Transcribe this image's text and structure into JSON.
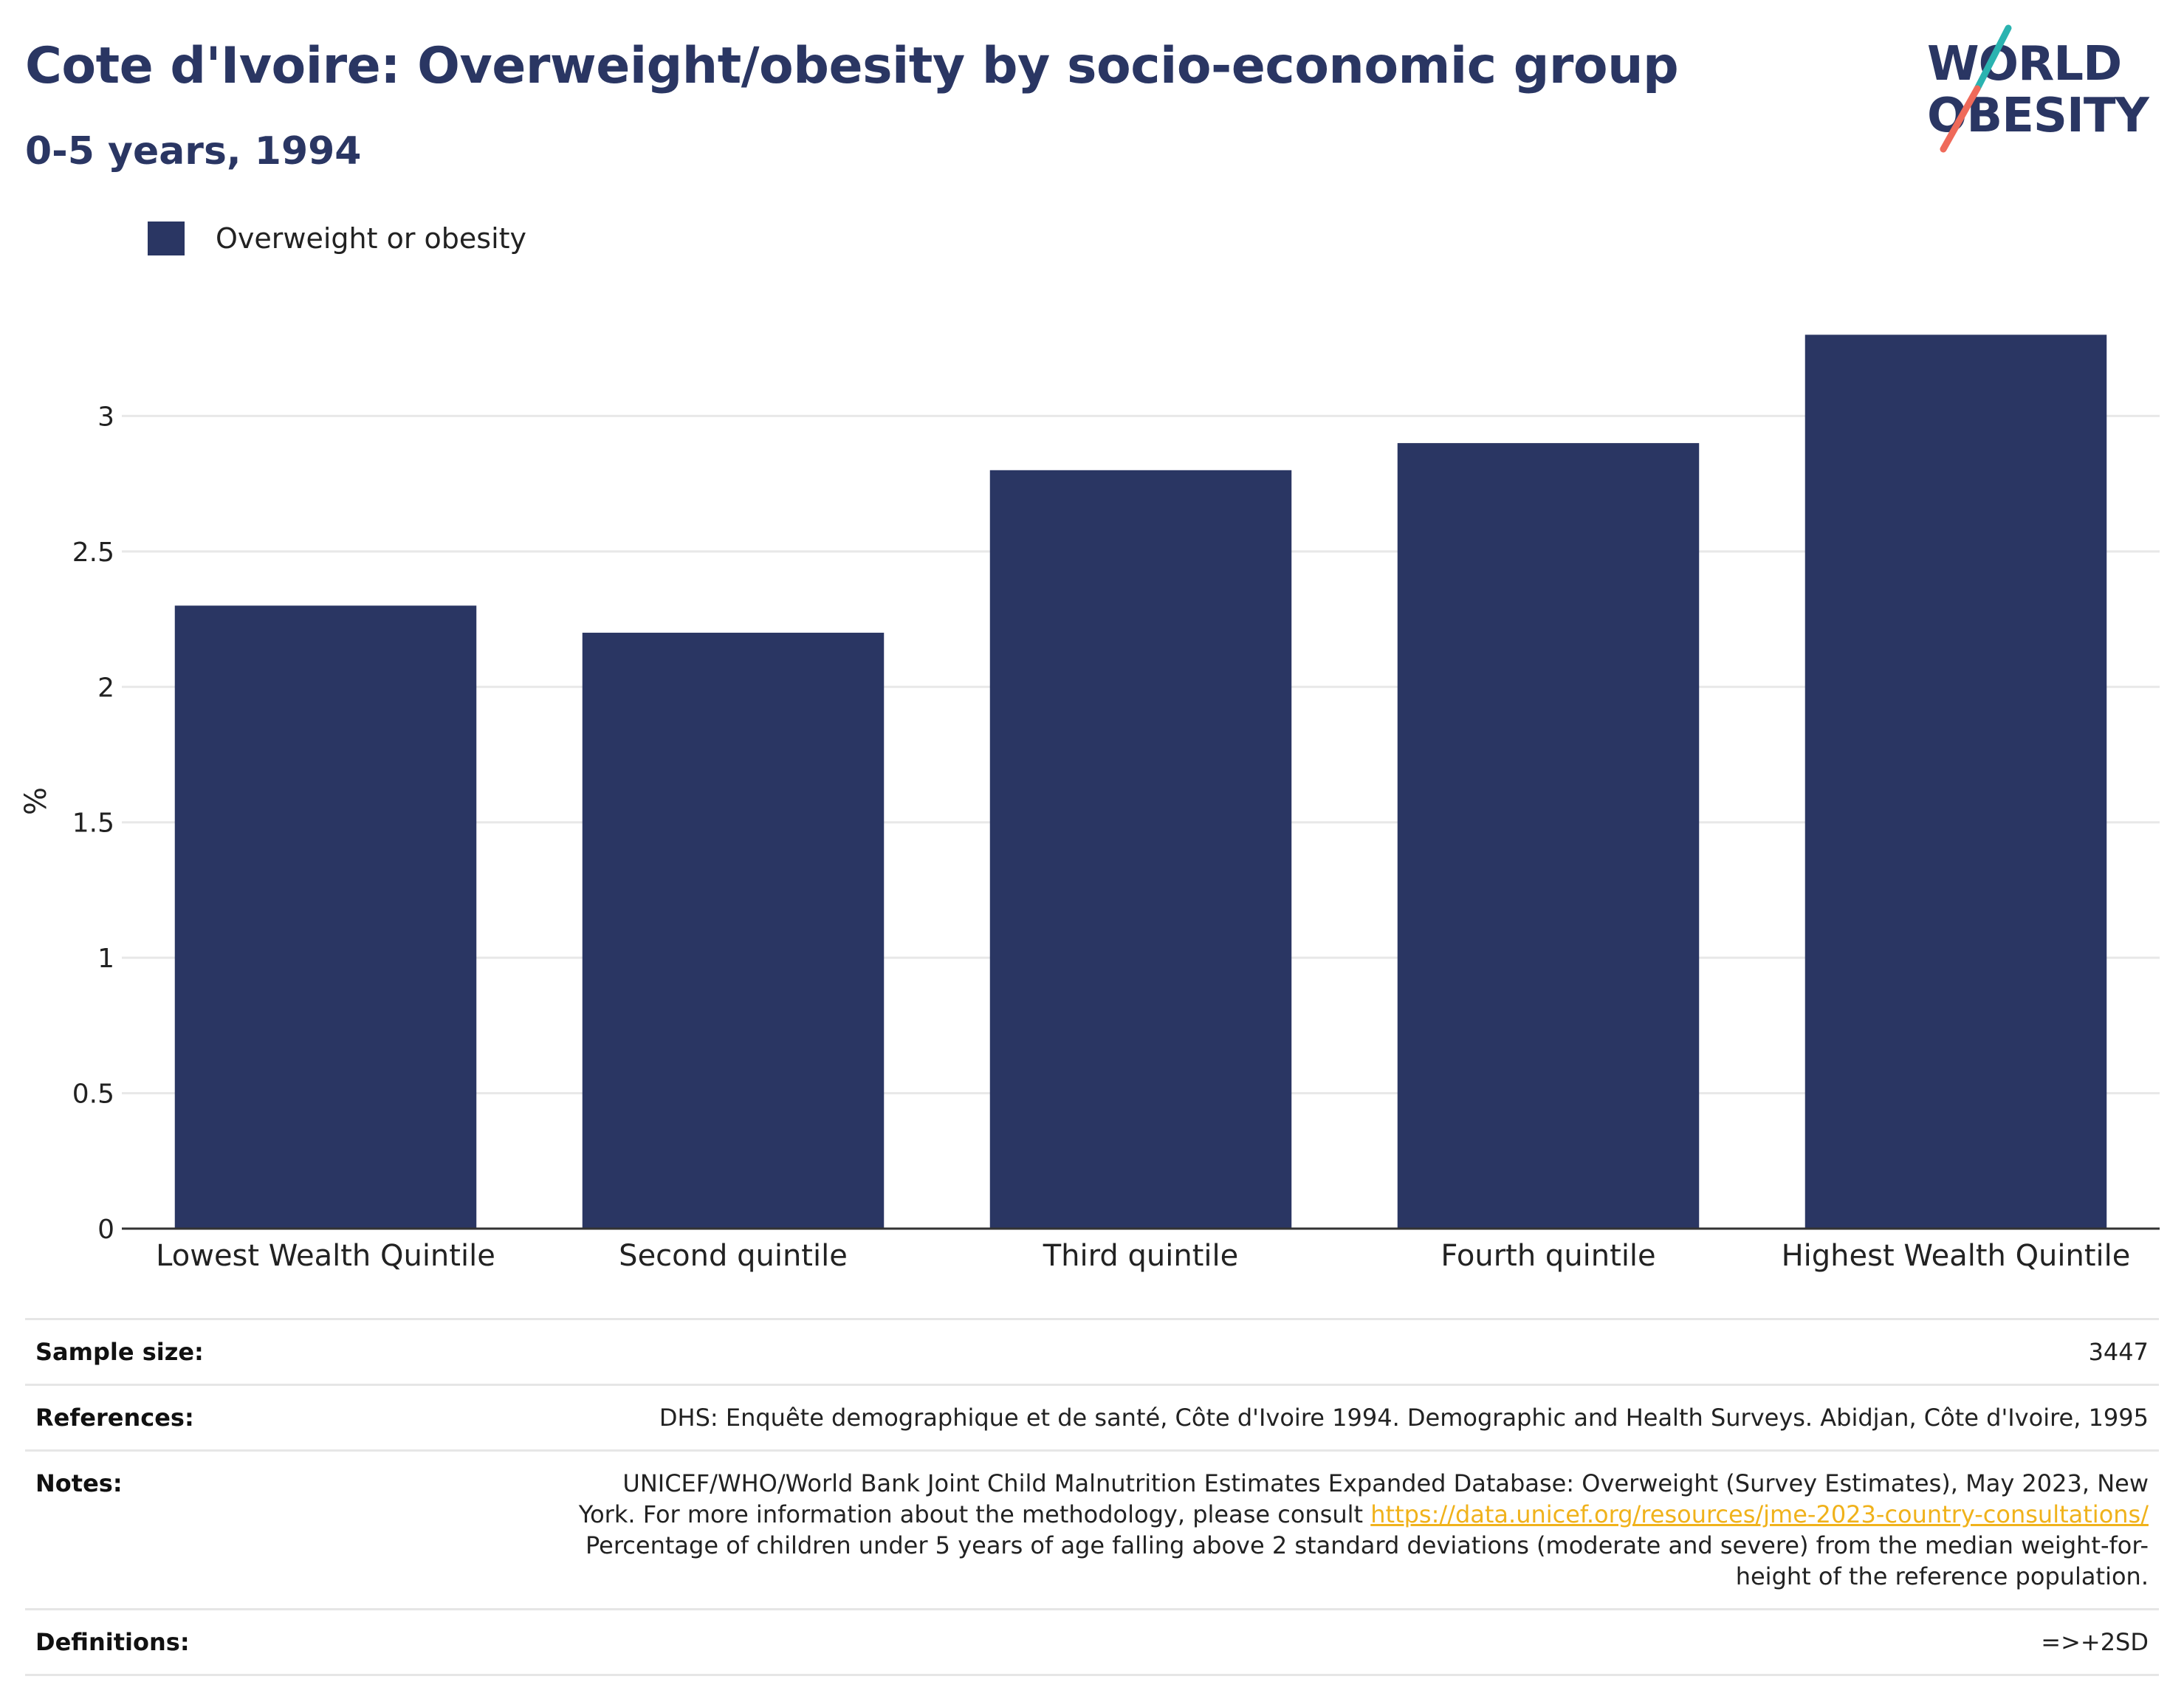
{
  "header": {
    "title": "Cote d'Ivoire: Overweight/obesity by socio-economic group",
    "subtitle": "0-5 years, 1994"
  },
  "logo": {
    "line1": "WORLD",
    "line2": "OBESITY",
    "colors": {
      "text": "#2a3663",
      "slash_top": "#2ab3b0",
      "slash_bottom": "#ef6a5a"
    }
  },
  "colors": {
    "bar": "#2a3663",
    "grid": "#e8e8e8",
    "axis": "#333333"
  },
  "chart_data": {
    "type": "bar",
    "categories": [
      "Lowest Wealth Quintile",
      "Second quintile",
      "Third quintile",
      "Fourth quintile",
      "Highest Wealth Quintile"
    ],
    "series": [
      {
        "name": "Overweight or obesity",
        "values": [
          2.3,
          2.2,
          2.8,
          2.9,
          3.3
        ]
      }
    ],
    "ylabel": "%",
    "xlabel": "",
    "ylim": [
      0,
      3.5
    ],
    "yticks": [
      0,
      0.5,
      1,
      1.5,
      2,
      2.5,
      3
    ],
    "ytick_labels": [
      "0",
      "0.5",
      "1",
      "1.5",
      "2",
      "2.5",
      "3"
    ],
    "grid": true,
    "legend_position": "top-left"
  },
  "info": {
    "sample_size_label": "Sample size:",
    "sample_size_value": "3447",
    "references_label": "References:",
    "references_value": "DHS: Enquête demographique et de santé, Côte d'Ivoire 1994. Demographic and Health Surveys. Abidjan, Côte d'Ivoire, 1995",
    "notes_label": "Notes:",
    "notes_line1": "UNICEF/WHO/World Bank Joint Child Malnutrition Estimates Expanded Database: Overweight (Survey Estimates), May 2023, New",
    "notes_line2_prefix": "York. For more information about the methodology, please consult",
    "notes_link": "https://data.unicef.org/resources/jme-2023-country-consultations/",
    "notes_line3": "Percentage of children under 5 years of age falling above 2 standard deviations (moderate and severe) from the median weight-for-",
    "notes_line4": "height of the reference population.",
    "definitions_label": "Definitions:",
    "definitions_value": "=>+2SD"
  }
}
